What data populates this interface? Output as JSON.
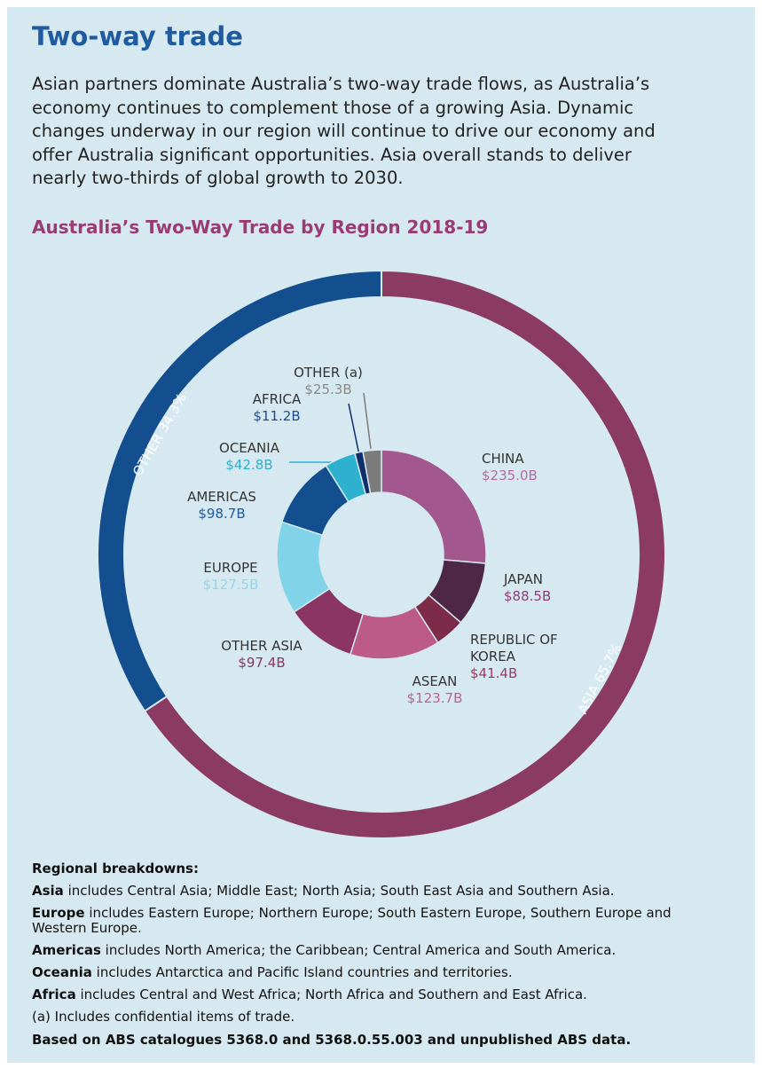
{
  "header": {
    "title": "Two-way trade",
    "body": [
      "Asian partners dominate Australia’s two-way trade flows, as Australia’s",
      "economy continues to complement those of a growing Asia. Dynamic",
      "changes underway in our region will continue to drive our economy and",
      "offer Australia significant opportunities. Asia overall stands to deliver",
      "nearly two-thirds of global growth to 2030."
    ]
  },
  "chart_data": {
    "type": "donut",
    "title": "Australia’s Two-Way Trade by Region 2018-19",
    "series": [
      {
        "categories": [
          "CHINA",
          "JAPAN",
          "REPUBLIC OF KOREA",
          "ASEAN",
          "OTHER ASIA",
          "EUROPE",
          "AMERICAS",
          "OCEANIA",
          "AFRICA",
          "OTHER (a)"
        ],
        "values": [
          235.0,
          88.5,
          41.4,
          123.7,
          97.4,
          127.5,
          98.7,
          42.8,
          11.2,
          25.3
        ],
        "value_labels": [
          "$235.0B",
          "$88.5B",
          "$41.4B",
          "$123.7B",
          "$97.4B",
          "$127.5B",
          "$98.7B",
          "$42.8B",
          "$11.2B",
          "$25.3B"
        ],
        "colors": [
          "#a2578f",
          "#4e2648",
          "#7c2b49",
          "#bb5b86",
          "#8a3563",
          "#80d3e8",
          "#134f8f",
          "#2db1cf",
          "#0e2f6b",
          "#7b7b7b"
        ]
      },
      {
        "categories": [
          "ASIA",
          "OTHER"
        ],
        "values": [
          65.7,
          34.3
        ],
        "value_labels": [
          "65.7%",
          "34.3%"
        ],
        "colors": [
          "#8b3a62",
          "#134e8f"
        ]
      }
    ]
  },
  "notes": {
    "heading": "Regional breakdowns:",
    "items": [
      {
        "term": "Asia",
        "text": " includes Central Asia; Middle East; North Asia; South East Asia and Southern Asia."
      },
      {
        "term": "Europe",
        "text": " includes Eastern Europe; Northern Europe; South Eastern Europe, Southern Europe and Western Europe."
      },
      {
        "term": "Americas",
        "text": " includes North America; the Caribbean; Central America and South America."
      },
      {
        "term": "Oceania",
        "text": " includes Antarctica and Pacific Island countries and territories."
      },
      {
        "term": "Africa",
        "text": " includes Central and West Africa; North Africa and Southern and East Africa."
      }
    ],
    "footnote": "(a) Includes confidential items of trade.",
    "source": "Based on ABS catalogues 5368.0 and 5368.0.55.003 and unpublished ABS data."
  }
}
